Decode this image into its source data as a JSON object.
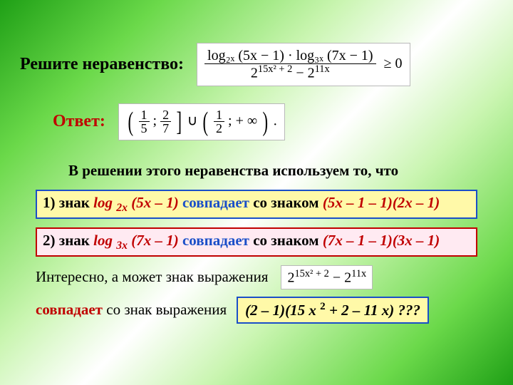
{
  "colors": {
    "blue": "#1a4fc8",
    "red": "#c00000",
    "yellow_box": "#fff9a8",
    "pink_box": "#ffeaf2",
    "text": "#000000"
  },
  "typography": {
    "family": "Times New Roman",
    "heading_size_pt": 18,
    "body_size_pt": 16
  },
  "title": "Решите неравенство:",
  "inequality": {
    "numerator": "log₂ₓ (5x − 1) · log₃ₓ (7x − 1)",
    "denominator_left": "2",
    "denominator_exp_left": "15x² + 2",
    "denominator_minus": " − ",
    "denominator_right": "2",
    "denominator_exp_right": "11x",
    "relation": " ≥ 0"
  },
  "answer_label": "Ответ:",
  "answer_interval": {
    "open1": "(",
    "frac1_n": "1",
    "frac1_d": "5",
    "sep1": ";",
    "frac2_n": "2",
    "frac2_d": "7",
    "close1": "]",
    "union": " ∪ ",
    "open2": "(",
    "frac3_n": "1",
    "frac3_d": "2",
    "sep2": ";",
    "inf": "  + ∞",
    "close2": ")",
    "dot": "."
  },
  "note": "В решении этого неравенства используем то, что",
  "box1": {
    "lead": "1)",
    "znak": " знак  ",
    "log": "log ",
    "logsub": "2x",
    "logarg": " (5x – 1) ",
    "sovp": " совпадает ",
    "so": "со знаком  ",
    "expr": "(5x – 1 – 1)(2x – 1)"
  },
  "box2": {
    "lead": "2)",
    "znak": " знак  ",
    "log": "log ",
    "logsub": "3x",
    "logarg": " (7x – 1) ",
    "sovp": " совпадает ",
    "so": "со знаком  ",
    "expr": "(7x – 1 – 1)(3x – 1)"
  },
  "interesting": "Интересно, а может знак выражения ",
  "power_expr": {
    "base1": "2",
    "exp1": "15x² + 2",
    "minus": " − ",
    "base2": "2",
    "exp2": "11x"
  },
  "final_line": {
    "sovp": "совпадает",
    "rest": " со  знак выражения"
  },
  "final_expr": "(2 – 1)(15 x ² + 2  – 11 x) ???"
}
